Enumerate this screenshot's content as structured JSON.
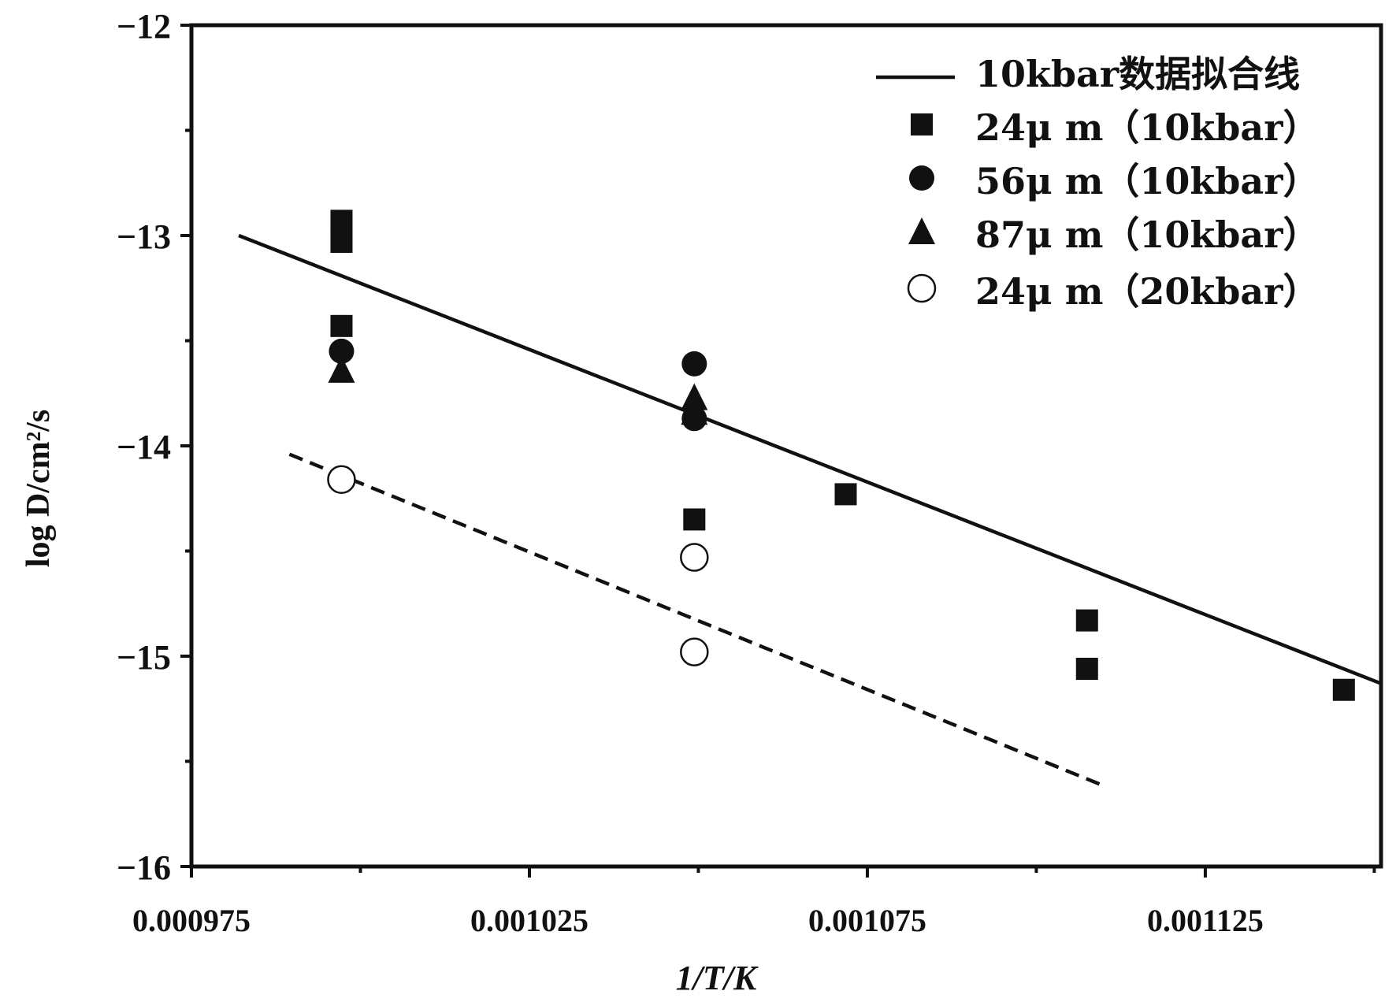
{
  "chart_data": {
    "type": "scatter",
    "xlabel": "1/T/K",
    "ylabel": "log D/cm²/s",
    "xlim": [
      0.000975,
      0.001151
    ],
    "ylim": [
      -16,
      -12
    ],
    "xticks": [
      0.000975,
      0.001025,
      0.001075,
      0.001125
    ],
    "xtick_labels": [
      "0.000975",
      "0.001025",
      "0.001075",
      "0.001125"
    ],
    "yticks": [
      -12,
      -13,
      -14,
      -15,
      -16
    ],
    "ytick_labels": [
      "−12",
      "−13",
      "−14",
      "−15",
      "−16"
    ],
    "grid": false,
    "legend_position": "top-right",
    "series": [
      {
        "name": "10kbar数据拟合线",
        "kind": "line",
        "style": "solid",
        "points": [
          [
            0.000982,
            -13.0
          ],
          [
            0.001151,
            -15.13
          ]
        ]
      },
      {
        "kind": "line",
        "style": "dashed",
        "points": [
          [
            0.0009895,
            -14.04
          ],
          [
            0.0011095,
            -15.61
          ]
        ]
      },
      {
        "name": "24μ m（10kbar）",
        "kind": "markers",
        "marker": "square-filled",
        "points": [
          [
            0.0009972,
            -12.93
          ],
          [
            0.0009972,
            -13.03
          ],
          [
            0.0009972,
            -13.43
          ],
          [
            0.0010494,
            -14.35
          ],
          [
            0.0010718,
            -14.23
          ],
          [
            0.0011075,
            -14.83
          ],
          [
            0.0011075,
            -15.06
          ],
          [
            0.0011455,
            -15.16
          ]
        ]
      },
      {
        "name": "56μ m（10kbar）",
        "kind": "markers",
        "marker": "circle-filled",
        "points": [
          [
            0.0009972,
            -13.55
          ],
          [
            0.0010494,
            -13.61
          ],
          [
            0.0010494,
            -13.87
          ]
        ]
      },
      {
        "name": "87μ m（10kbar）",
        "kind": "markers",
        "marker": "triangle-filled",
        "points": [
          [
            0.0009972,
            -13.64
          ],
          [
            0.0010494,
            -13.77
          ],
          [
            0.0010494,
            -13.84
          ]
        ]
      },
      {
        "name": "24μ m（20kbar）",
        "kind": "markers",
        "marker": "circle-open",
        "points": [
          [
            0.0009972,
            -14.16
          ],
          [
            0.0010494,
            -14.53
          ],
          [
            0.0010494,
            -14.98
          ]
        ]
      }
    ]
  }
}
